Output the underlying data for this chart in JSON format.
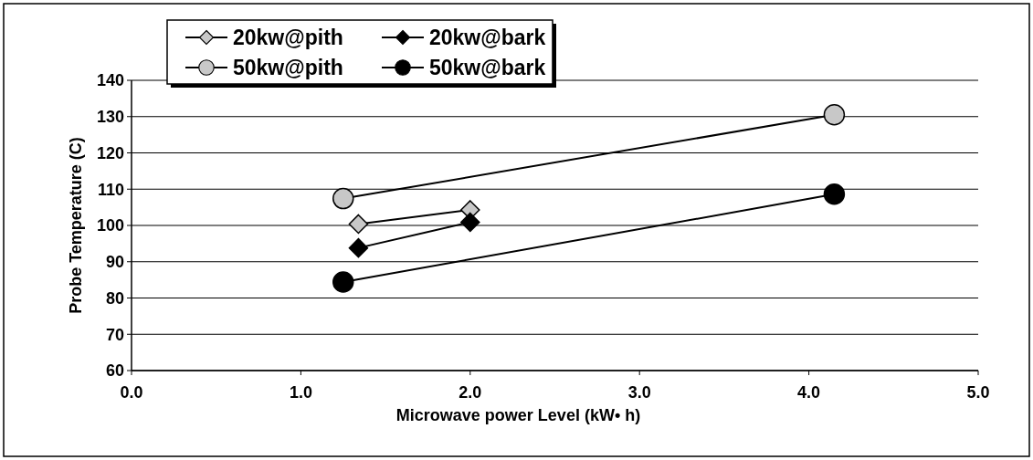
{
  "chart_data": {
    "type": "line",
    "xlabel": "Microwave power Level (kW• h)",
    "ylabel": "Probe Temperature (C)",
    "xlim": [
      0,
      5
    ],
    "xticks": [
      {
        "value": 0,
        "label": "0.0"
      },
      {
        "value": 1,
        "label": "1.0"
      },
      {
        "value": 2,
        "label": "2.0"
      },
      {
        "value": 3,
        "label": "3.0"
      },
      {
        "value": 4,
        "label": "4.0"
      },
      {
        "value": 5,
        "label": "5.0"
      }
    ],
    "ylim": [
      60,
      140
    ],
    "yticks": [
      60,
      70,
      80,
      90,
      100,
      110,
      120,
      130,
      140
    ],
    "grid": "y",
    "legend": "top left",
    "series": [
      {
        "name": "20kw@pith",
        "color": "#c8c8c8",
        "marker": "diamond",
        "x": [
          1.34,
          2.0
        ],
        "values": [
          100.4,
          104.3
        ]
      },
      {
        "name": "20kw@bark",
        "color": "#000000",
        "marker": "diamond",
        "x": [
          1.34,
          2.0
        ],
        "values": [
          93.8,
          100.9
        ]
      },
      {
        "name": "50kw@pith",
        "color": "#c8c8c8",
        "marker": "circle",
        "x": [
          1.25,
          4.15
        ],
        "values": [
          107.4,
          130.5
        ]
      },
      {
        "name": "50kw@bark",
        "color": "#000000",
        "marker": "circle",
        "x": [
          1.25,
          4.15
        ],
        "values": [
          84.4,
          108.6
        ]
      }
    ]
  }
}
